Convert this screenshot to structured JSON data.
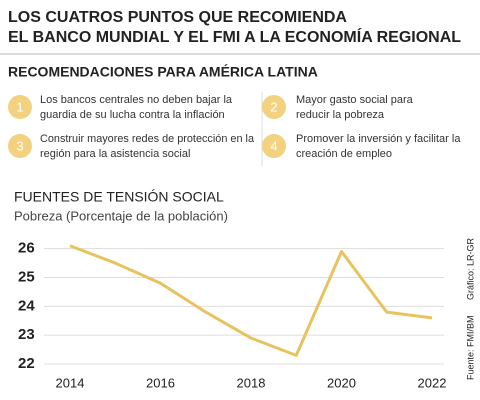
{
  "header": {
    "title_lines": [
      "LOS CUATROS PUNTOS QUE RECOMIENDA",
      "EL BANCO MUNDIAL Y EL FMI A LA ECONOMÍA REGIONAL"
    ],
    "subtitle": "RECOMENDACIONES PARA AMÉRICA LATINA"
  },
  "recommendations": [
    {
      "number": "1",
      "lines": [
        "Los bancos centrales no deben bajar la",
        "guardia de su lucha contra la inflación"
      ]
    },
    {
      "number": "2",
      "lines": [
        "Mayor gasto social para",
        "reducir la pobreza"
      ]
    },
    {
      "number": "3",
      "lines": [
        "Construir mayores redes de protección en la",
        "región para la asistencia social"
      ]
    },
    {
      "number": "4",
      "lines": [
        "Promover la inversión y facilitar la",
        "creación de empleo"
      ]
    }
  ],
  "chart_data": {
    "type": "line",
    "title": "FUENTES DE TENSIÓN SOCIAL",
    "subtitle": "Pobreza (Porcentaje de la población)",
    "x": [
      2014,
      2015,
      2016,
      2017,
      2018,
      2019,
      2020,
      2021,
      2022
    ],
    "values": [
      26.1,
      25.5,
      24.8,
      23.8,
      22.9,
      22.3,
      25.9,
      23.8,
      23.6
    ],
    "color": "#e8c25e",
    "xlim": [
      2014,
      2022
    ],
    "xticks": [
      2014,
      2016,
      2018,
      2020,
      2022
    ],
    "ylim": [
      22,
      26.3
    ],
    "yticks": [
      22,
      23,
      24,
      25,
      26
    ],
    "grid": true,
    "source": "Fuente: FMI/BM",
    "credit": "Gráfico: LR-GR"
  }
}
